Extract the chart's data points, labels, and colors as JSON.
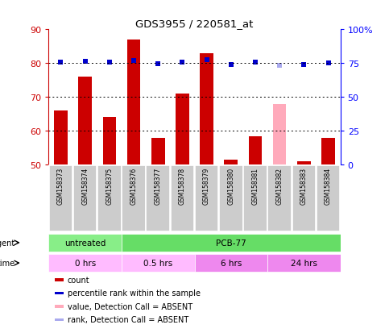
{
  "title": "GDS3955 / 220581_at",
  "samples": [
    "GSM158373",
    "GSM158374",
    "GSM158375",
    "GSM158376",
    "GSM158377",
    "GSM158378",
    "GSM158379",
    "GSM158380",
    "GSM158381",
    "GSM158382",
    "GSM158383",
    "GSM158384"
  ],
  "bar_values": [
    66,
    76,
    64,
    87,
    58,
    71,
    83,
    51.5,
    58.5,
    68,
    51,
    58
  ],
  "bar_colors": [
    "#cc0000",
    "#cc0000",
    "#cc0000",
    "#cc0000",
    "#cc0000",
    "#cc0000",
    "#cc0000",
    "#cc0000",
    "#cc0000",
    "#ffaabb",
    "#cc0000",
    "#cc0000"
  ],
  "rank_values": [
    75.5,
    76.5,
    75.5,
    77,
    74.5,
    76,
    77.5,
    74,
    75.5,
    73.5,
    74,
    75
  ],
  "rank_colors": [
    "#0000cc",
    "#0000cc",
    "#0000cc",
    "#0000cc",
    "#0000cc",
    "#0000cc",
    "#0000cc",
    "#0000cc",
    "#0000cc",
    "#aaaaee",
    "#0000cc",
    "#0000cc"
  ],
  "ylim_left": [
    50,
    90
  ],
  "ylim_right": [
    0,
    100
  ],
  "yticks_left": [
    50,
    60,
    70,
    80,
    90
  ],
  "yticks_right": [
    0,
    25,
    50,
    75,
    100
  ],
  "ytick_labels_right": [
    "0",
    "25",
    "50",
    "75",
    "100%"
  ],
  "agent_labels": [
    {
      "text": "untreated",
      "start": 0,
      "end": 3,
      "color": "#88ee88"
    },
    {
      "text": "PCB-77",
      "start": 3,
      "end": 12,
      "color": "#66dd66"
    }
  ],
  "time_labels": [
    {
      "text": "0 hrs",
      "start": 0,
      "end": 3,
      "color": "#ffbbff"
    },
    {
      "text": "0.5 hrs",
      "start": 3,
      "end": 6,
      "color": "#ffbbff"
    },
    {
      "text": "6 hrs",
      "start": 6,
      "end": 9,
      "color": "#ee88ee"
    },
    {
      "text": "24 hrs",
      "start": 9,
      "end": 12,
      "color": "#ee88ee"
    }
  ],
  "legend_items": [
    {
      "color": "#cc0000",
      "label": "count",
      "marker": "s"
    },
    {
      "color": "#0000cc",
      "label": "percentile rank within the sample",
      "marker": "s"
    },
    {
      "color": "#ffaabb",
      "label": "value, Detection Call = ABSENT",
      "marker": "s"
    },
    {
      "color": "#aaaaee",
      "label": "rank, Detection Call = ABSENT",
      "marker": "s"
    }
  ],
  "bar_width": 0.55,
  "rank_marker_size": 5,
  "bg_color": "#ffffff",
  "xlabel_color": "#cc0000",
  "ylabel_right_color": "#0000ff",
  "grid_yticks": [
    60,
    70,
    80
  ],
  "sample_cell_color": "#cccccc",
  "sample_text_color": "#000000"
}
